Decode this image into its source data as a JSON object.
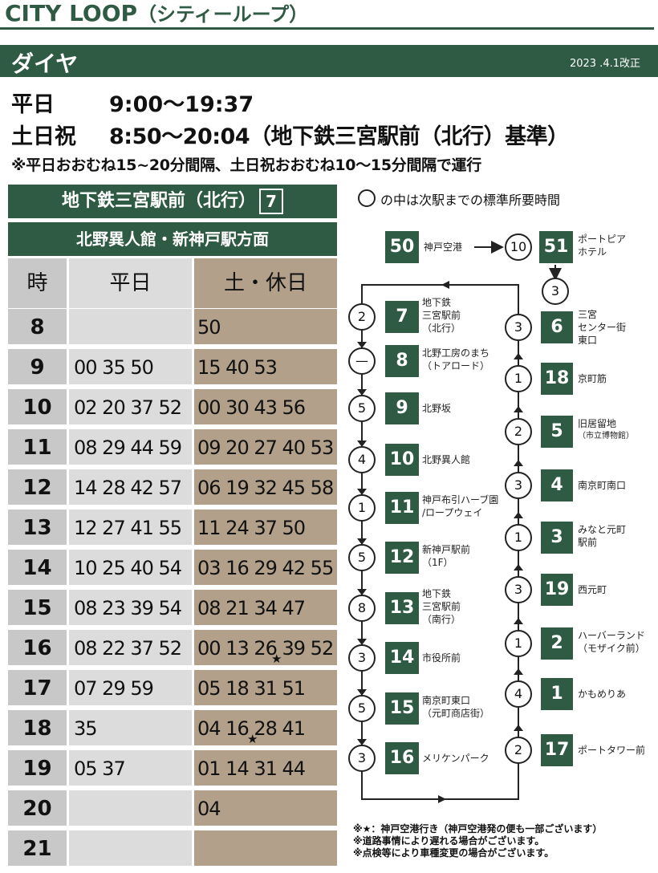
{
  "header": {
    "title": "CITY LOOP",
    "subtitle": "（シティーループ）",
    "section": "ダイヤ",
    "revision": "2023 .4.1改正"
  },
  "hours": {
    "weekday_label": "平日",
    "weekday_range": "9:00〜19:37",
    "holiday_label": "土日祝",
    "holiday_range": "8:50〜20:04（地下鉄三宮駅前（北行）基準）",
    "note": "※平日おおむね15~20分間隔、土日祝おおむね10～15分間隔で運行"
  },
  "timetable": {
    "stop": "地下鉄三宮駅前（北行）",
    "stop_no": "7",
    "direction": "北野異人館・新神戸駅方面",
    "col_hour": "時",
    "col_weekday": "平日",
    "col_holiday": "土・休日",
    "rows": [
      {
        "hour": "8",
        "weekday": "",
        "holiday": "50"
      },
      {
        "hour": "9",
        "weekday": "00 35 50",
        "holiday": "15 40 53"
      },
      {
        "hour": "10",
        "weekday": "02 20 37 52",
        "holiday": "00 30 43 56"
      },
      {
        "hour": "11",
        "weekday": "08 29 44 59",
        "holiday": "09 20 27 40 53"
      },
      {
        "hour": "12",
        "weekday": "14 28 42 57",
        "holiday": "06 19 32 45 58"
      },
      {
        "hour": "13",
        "weekday": "12 27 41 55",
        "holiday": "11 24 37 50"
      },
      {
        "hour": "14",
        "weekday": "10 25 40 54",
        "holiday": "03 16 29 42 55"
      },
      {
        "hour": "15",
        "weekday": "08 23 39 54",
        "holiday": "08 21 34 47"
      },
      {
        "hour": "16",
        "weekday": "08 22 37 52",
        "holiday": "00 13 26 39 52"
      },
      {
        "hour": "17",
        "weekday": "07 29 59",
        "holiday": "05 18 31 51"
      },
      {
        "hour": "18",
        "weekday": "35",
        "holiday": "04 16 28 41"
      },
      {
        "hour": "19",
        "weekday": "05 37",
        "holiday": "01 14 31 44"
      },
      {
        "hour": "20",
        "weekday": "",
        "holiday": "04"
      },
      {
        "hour": "21",
        "weekday": "",
        "holiday": ""
      }
    ],
    "star": "★"
  },
  "route": {
    "legend": "の中は次駅までの標準所要時間",
    "top": [
      {
        "no": "50",
        "name": "神戸空港"
      },
      {
        "time": "10"
      },
      {
        "no": "51",
        "name": "ポートピア\nホテル"
      },
      {
        "time": "3"
      }
    ],
    "left_stops": [
      {
        "no": "7",
        "name": "地下鉄\n三宮駅前\n（北行）",
        "time": "2"
      },
      {
        "no": "8",
        "name": "北野工房のまち\n（トアロード）",
        "time": "—"
      },
      {
        "no": "9",
        "name": "北野坂",
        "time": "5"
      },
      {
        "no": "10",
        "name": "北野異人館",
        "time": "4"
      },
      {
        "no": "11",
        "name": "神戸布引ハーブ園\n/ロープウェイ",
        "time": "1"
      },
      {
        "no": "12",
        "name": "新神戸駅前\n（1F）",
        "time": "5"
      },
      {
        "no": "13",
        "name": "地下鉄\n三宮駅前\n（南行）",
        "time": "8"
      },
      {
        "no": "14",
        "name": "市役所前",
        "time": "3"
      },
      {
        "no": "15",
        "name": "南京町東口\n（元町商店街）",
        "time": "5"
      },
      {
        "no": "16",
        "name": "メリケンパーク",
        "time": "3"
      }
    ],
    "right_stops": [
      {
        "no": "6",
        "name": "三宮\nセンター街\n東口",
        "time": "3"
      },
      {
        "no": "18",
        "name": "京町筋",
        "time": "1"
      },
      {
        "no": "5",
        "name": "旧居留地",
        "sub": "（市立博物館）",
        "time": "2"
      },
      {
        "no": "4",
        "name": "南京町南口",
        "time": "3"
      },
      {
        "no": "3",
        "name": "みなと元町\n駅前",
        "time": "1"
      },
      {
        "no": "19",
        "name": "西元町",
        "time": "3"
      },
      {
        "no": "2",
        "name": "ハーバーランド\n（モザイク前）",
        "time": "1"
      },
      {
        "no": "1",
        "name": "かもめりあ",
        "time": "4"
      },
      {
        "no": "17",
        "name": "ポートタワー前",
        "time": "2"
      }
    ]
  },
  "footer": [
    "※★：神戸空港行き（神戸空港発の便も一部ございます）",
    "※道路事情により遅れる場合がございます。",
    "※点検等により車種変更の場合がございます。"
  ],
  "colors": {
    "green": "#2f5a43",
    "grey": "#c8c8c8",
    "light": "#dcdcdc",
    "tan": "#b3a08a"
  }
}
